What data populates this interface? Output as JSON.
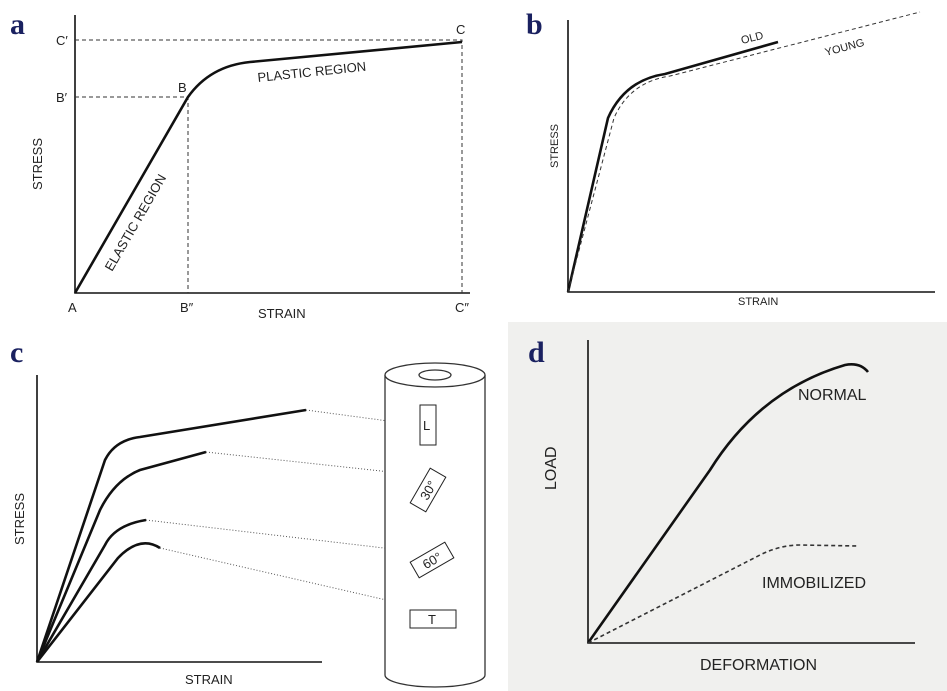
{
  "panels": {
    "a": {
      "label": "a",
      "x_axis": "STRAIN",
      "y_axis": "STRESS",
      "points": {
        "c_prime": "C′",
        "b_prime": "B′",
        "b": "B",
        "c": "C",
        "a": "A",
        "b_double": "B″",
        "c_double": "C″"
      },
      "regions": {
        "elastic": "ELASTIC REGION",
        "plastic": "PLASTIC REGION"
      }
    },
    "b": {
      "label": "b",
      "x_axis": "STRAIN",
      "y_axis": "STRESS",
      "curves": {
        "old": "OLD",
        "young": "YOUNG"
      }
    },
    "c": {
      "label": "c",
      "x_axis": "STRAIN",
      "y_axis": "STRESS",
      "specimens": {
        "l": "L",
        "d30": "30°",
        "d60": "60°",
        "t": "T"
      }
    },
    "d": {
      "label": "d",
      "x_axis": "DEFORMATION",
      "y_axis": "LOAD",
      "curves": {
        "normal": "NORMAL",
        "immobilized": "IMMOBILIZED"
      }
    }
  }
}
